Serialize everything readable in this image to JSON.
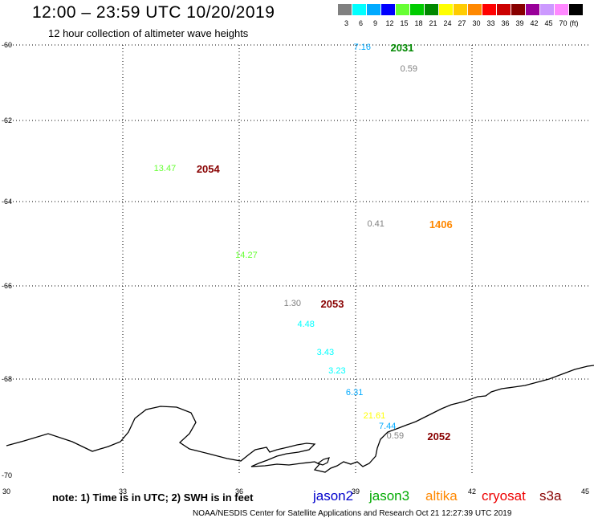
{
  "header": {
    "title": "12:00 – 23:59 UTC 10/20/2019",
    "subtitle": "12 hour collection of altimeter wave heights"
  },
  "color_scale": {
    "unit_label": "(ft)",
    "bins": [
      {
        "label": "3",
        "color": "#808080"
      },
      {
        "label": "6",
        "color": "#00ffff"
      },
      {
        "label": "9",
        "color": "#00aaff"
      },
      {
        "label": "12",
        "color": "#0000ff"
      },
      {
        "label": "15",
        "color": "#66ff33"
      },
      {
        "label": "18",
        "color": "#00cc00"
      },
      {
        "label": "21",
        "color": "#008800"
      },
      {
        "label": "24",
        "color": "#ffff00"
      },
      {
        "label": "27",
        "color": "#ffcc00"
      },
      {
        "label": "30",
        "color": "#ff8800"
      },
      {
        "label": "33",
        "color": "#ff0000"
      },
      {
        "label": "36",
        "color": "#cc0000"
      },
      {
        "label": "39",
        "color": "#880000"
      },
      {
        "label": "42",
        "color": "#990099"
      },
      {
        "label": "45",
        "color": "#cc99ff"
      },
      {
        "label": "70",
        "color": "#ff88ff"
      },
      {
        "label": "",
        "color": "#000000"
      }
    ]
  },
  "axes": {
    "lat_labels": [
      "-60",
      "-62",
      "-64",
      "-66",
      "-68",
      "-70"
    ],
    "lon_labels": [
      "30",
      "33",
      "36",
      "39",
      "42",
      "45"
    ]
  },
  "wave_heights": [
    {
      "value": "7.16",
      "color": "#00aaff",
      "lon": 38.95,
      "lat": -60.08
    },
    {
      "value": "0.59",
      "color": "#808080",
      "lon": 40.15,
      "lat": -60.65
    },
    {
      "value": "13.47",
      "color": "#66ff33",
      "lon": 33.8,
      "lat": -63.2
    },
    {
      "value": "0.41",
      "color": "#808080",
      "lon": 39.3,
      "lat": -64.55
    },
    {
      "value": "14.27",
      "color": "#66ff33",
      "lon": 35.9,
      "lat": -65.3
    },
    {
      "value": "1.30",
      "color": "#808080",
      "lon": 37.15,
      "lat": -66.4
    },
    {
      "value": "4.48",
      "color": "#00ffff",
      "lon": 37.5,
      "lat": -66.85
    },
    {
      "value": "3.43",
      "color": "#00ffff",
      "lon": 38.0,
      "lat": -67.45
    },
    {
      "value": "3.23",
      "color": "#00ffff",
      "lon": 38.3,
      "lat": -67.85
    },
    {
      "value": "6.31",
      "color": "#00aaff",
      "lon": 38.75,
      "lat": -68.3
    },
    {
      "value": "21.61",
      "color": "#ffff00",
      "lon": 39.2,
      "lat": -68.78
    },
    {
      "value": "7.44",
      "color": "#00aaff",
      "lon": 39.6,
      "lat": -69.0
    },
    {
      "value": "0.59",
      "color": "#808080",
      "lon": 39.8,
      "lat": -69.2
    }
  ],
  "passes": [
    {
      "label": "2031",
      "color": "#008800",
      "lon": 39.9,
      "lat": -60.08
    },
    {
      "label": "2054",
      "color": "#880000",
      "lon": 34.9,
      "lat": -63.2
    },
    {
      "label": "1406",
      "color": "#ff8800",
      "lon": 40.9,
      "lat": -64.55
    },
    {
      "label": "2053",
      "color": "#880000",
      "lon": 38.1,
      "lat": -66.4
    },
    {
      "label": "2052",
      "color": "#880000",
      "lon": 40.85,
      "lat": -69.2
    }
  ],
  "footer": {
    "note": "note: 1) Time is in UTC; 2) SWH is in feet",
    "satellites": [
      {
        "name": "jason2",
        "color": "#0000cc"
      },
      {
        "name": "jason3",
        "color": "#00aa00"
      },
      {
        "name": "altika",
        "color": "#ff8800"
      },
      {
        "name": "cryosat",
        "color": "#ee0000"
      },
      {
        "name": "s3a",
        "color": "#880000"
      }
    ],
    "credit": "NOAA/NESDIS Center for Satellite Applications and Research    Oct 21 12:27:39 UTC 2019"
  }
}
